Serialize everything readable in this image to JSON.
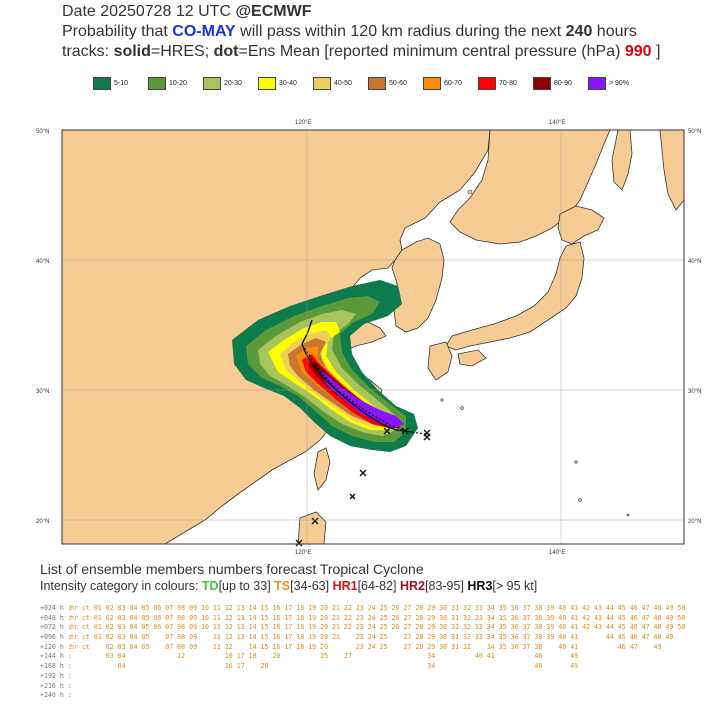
{
  "header": {
    "line1_prefix": "Date 20250728 12 UTC   ",
    "line1_brand": "@ECMWF",
    "line2_a": "Probability that ",
    "line2_name": "CO-MAY",
    "line2_b": " will pass within 120 km radius during the next ",
    "line2_hours": "240",
    "line2_c": " hours",
    "line3_a": "tracks: ",
    "line3_solid": "solid",
    "line3_b": "=HRES; ",
    "line3_dot": "dot",
    "line3_c": "=Ens Mean [reported minimum central pressure (hPa) ",
    "line3_pressure": "990",
    "line3_d": " ]"
  },
  "legend": [
    {
      "label": "5-10",
      "color": "#0e7b4c"
    },
    {
      "label": "10-20",
      "color": "#5b9a3a"
    },
    {
      "label": "20-30",
      "color": "#a8c45c"
    },
    {
      "label": "30-40",
      "color": "#ffff00"
    },
    {
      "label": "40-50",
      "color": "#ecd058"
    },
    {
      "label": "50-60",
      "color": "#c8782e"
    },
    {
      "label": "60-70",
      "color": "#ff8c00"
    },
    {
      "label": "70-80",
      "color": "#ff0000"
    },
    {
      "label": "80-90",
      "color": "#8c0000"
    },
    {
      "label": "> 90%",
      "color": "#8a14ff"
    }
  ],
  "map": {
    "lon_labels": [
      "120°E",
      "140°E"
    ],
    "lat_labels": [
      "50°N",
      "40°N",
      "30°N",
      "20°N"
    ],
    "colors": {
      "sea": "#ffffff",
      "land": "#f7cc94",
      "coast": "#333333"
    }
  },
  "list": {
    "title": "List of ensemble members numbers forecast Tropical Cyclone",
    "sub_prefix": "Intensity category in colours: ",
    "td": "TD",
    "td_range": "[up to 33]",
    "ts": "TS",
    "ts_range": "[34-63]",
    "hr1": "HR1",
    "hr1_range": "[64-82]",
    "hr2": "HR2",
    "hr2_range": "[83-95]",
    "hr3": "HR3",
    "hr3_range": "[> 95 kt]",
    "rows": [
      {
        "label": "+024 h :",
        "values": "hr ct 01 02 03 04 05 06 07 08 09 10 11 12 13 14 15 16 17 18 19 20 21 22 23 24 25 26 27 28 29 30 31 32 33 34 35 36 37 38 39 40 41 42 43 44 45 46 47 48 49 50"
      },
      {
        "label": "+048 h :",
        "values": "hr ct 01 02 03 04 05 06 07 08 09 10 11 12 13 14 15 16 17 18 19 20 21 22 23 24 25 26 27 28 29 30 31 32 33 34 35 36 37 38 39 40 41 42 43 44 45 46 47 48 49 50"
      },
      {
        "label": "+072 h :",
        "values": "hr ct 01 02 03 04 05 06 07 08 09 10 11 12 13 14 15 16 17 18 19 20 21 22 23 24 25 26 27 28 29 30 31 32 33 34 35 36 37 38 39 40 41 42 43 44 45 46 47 48 49 50"
      },
      {
        "label": "+096 h :",
        "values": "hr ct 01 02 03 04 05    07 08 09    11 12 13 14 15 16 17 18 19 20 21    23 24 25    27 28 29 30 31 32 33 34 35 36 37 38 39 40 41       44 45 46 47 48 49"
      },
      {
        "label": "+120 h :",
        "values": "hr ct    02 03 04 05    07 08 09    11 12    14 15 16 17 18 19 20       23 24 25    27 28 29 30 31 32    34 35 36 37 38    40 41          46 47    49"
      },
      {
        "label": "+144 h :",
        "values": "         03 04             12          16 17 18    20          25    27                   34          40 41          46       49"
      },
      {
        "label": "+168 h :",
        "values": "            04                         16 17    20                                        34                         46       49"
      },
      {
        "label": "+192 h :",
        "values": ""
      },
      {
        "label": "+216 h :",
        "values": ""
      },
      {
        "label": "+240 h :",
        "values": ""
      }
    ]
  }
}
